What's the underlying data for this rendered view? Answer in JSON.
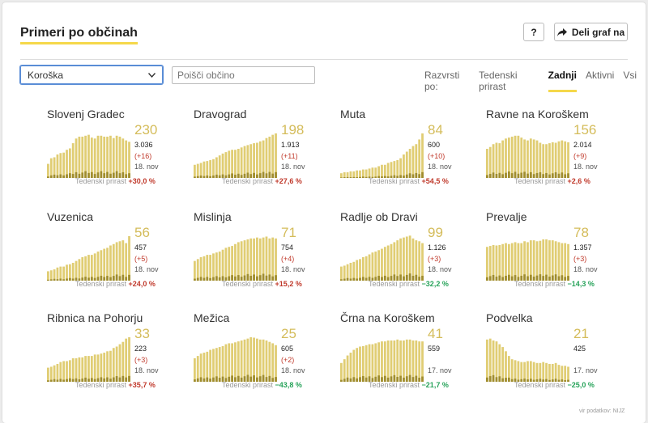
{
  "header": {
    "title": "Primeri po občinah",
    "help_label": "?",
    "share_label": "Deli graf na"
  },
  "filters": {
    "region_selected": "Koroška",
    "search_placeholder": "Poišči občino",
    "sort_label": "Razvrsti po:",
    "sort_options": [
      "Tedenski prirast",
      "Zadnji",
      "Aktivni",
      "Vsi"
    ],
    "sort_active": "Zadnji"
  },
  "weekly_label": "Tedenski prirast",
  "municipalities": [
    {
      "name": "Slovenj Gradec",
      "latest": "230",
      "total": "3.036",
      "delta": "(+16)",
      "date": "18. nov",
      "weekly": "+30,0 %",
      "trend": "up",
      "bars": [
        0.3,
        0.42,
        0.44,
        0.5,
        0.53,
        0.54,
        0.6,
        0.63,
        0.74,
        0.84,
        0.88,
        0.88,
        0.9,
        0.92,
        0.86,
        0.84,
        0.9,
        0.9,
        0.88,
        0.88,
        0.9,
        0.85,
        0.9,
        0.88,
        0.84,
        0.8,
        0.77
      ]
    },
    {
      "name": "Dravograd",
      "latest": "198",
      "total": "1.913",
      "delta": "(+11)",
      "date": "18. nov",
      "weekly": "+27,6 %",
      "trend": "up",
      "bars": [
        0.28,
        0.3,
        0.32,
        0.35,
        0.36,
        0.38,
        0.4,
        0.44,
        0.48,
        0.52,
        0.55,
        0.58,
        0.6,
        0.6,
        0.62,
        0.65,
        0.68,
        0.7,
        0.72,
        0.74,
        0.75,
        0.78,
        0.8,
        0.85,
        0.88,
        0.92,
        0.95
      ]
    },
    {
      "name": "Muta",
      "latest": "84",
      "total": "600",
      "delta": "(+10)",
      "date": "18. nov",
      "weekly": "+54,5 %",
      "trend": "up",
      "bars": [
        0.1,
        0.12,
        0.12,
        0.14,
        0.14,
        0.16,
        0.16,
        0.18,
        0.18,
        0.2,
        0.22,
        0.22,
        0.25,
        0.28,
        0.28,
        0.32,
        0.34,
        0.36,
        0.38,
        0.42,
        0.5,
        0.56,
        0.62,
        0.68,
        0.72,
        0.82,
        0.95
      ]
    },
    {
      "name": "Ravne na Koroškem",
      "latest": "156",
      "total": "2.014",
      "delta": "(+9)",
      "date": "18. nov",
      "weekly": "+2,6 %",
      "trend": "up",
      "bars": [
        0.62,
        0.66,
        0.72,
        0.75,
        0.74,
        0.8,
        0.84,
        0.86,
        0.88,
        0.9,
        0.9,
        0.86,
        0.82,
        0.8,
        0.84,
        0.82,
        0.8,
        0.75,
        0.72,
        0.72,
        0.74,
        0.76,
        0.75,
        0.78,
        0.8,
        0.78,
        0.76
      ]
    },
    {
      "name": "Vuzenica",
      "latest": "56",
      "total": "457",
      "delta": "(+5)",
      "date": "18. nov",
      "weekly": "+24,0 %",
      "trend": "up",
      "bars": [
        0.2,
        0.22,
        0.24,
        0.28,
        0.3,
        0.3,
        0.34,
        0.35,
        0.38,
        0.42,
        0.46,
        0.5,
        0.52,
        0.55,
        0.55,
        0.58,
        0.62,
        0.65,
        0.68,
        0.7,
        0.75,
        0.78,
        0.82,
        0.84,
        0.86,
        0.8,
        0.95
      ]
    },
    {
      "name": "Mislinja",
      "latest": "71",
      "total": "754",
      "delta": "(+4)",
      "date": "18. nov",
      "weekly": "+15,2 %",
      "trend": "up",
      "bars": [
        0.42,
        0.46,
        0.5,
        0.52,
        0.55,
        0.55,
        0.58,
        0.6,
        0.62,
        0.66,
        0.7,
        0.72,
        0.74,
        0.78,
        0.82,
        0.84,
        0.86,
        0.88,
        0.9,
        0.9,
        0.92,
        0.9,
        0.92,
        0.94,
        0.9,
        0.92,
        0.9
      ]
    },
    {
      "name": "Radlje ob Dravi",
      "latest": "99",
      "total": "1.126",
      "delta": "(+3)",
      "date": "18. nov",
      "weekly": "−32,2 %",
      "trend": "down",
      "bars": [
        0.3,
        0.32,
        0.35,
        0.38,
        0.4,
        0.44,
        0.46,
        0.5,
        0.52,
        0.56,
        0.6,
        0.62,
        0.65,
        0.68,
        0.72,
        0.75,
        0.78,
        0.82,
        0.86,
        0.9,
        0.92,
        0.94,
        0.96,
        0.9,
        0.86,
        0.84,
        0.8
      ]
    },
    {
      "name": "Prevalje",
      "latest": "78",
      "total": "1.357",
      "delta": "(+3)",
      "date": "18. nov",
      "weekly": "−14,3 %",
      "trend": "down",
      "bars": [
        0.72,
        0.74,
        0.76,
        0.75,
        0.76,
        0.78,
        0.8,
        0.78,
        0.8,
        0.82,
        0.8,
        0.8,
        0.84,
        0.82,
        0.86,
        0.86,
        0.84,
        0.85,
        0.88,
        0.88,
        0.86,
        0.86,
        0.84,
        0.82,
        0.8,
        0.8,
        0.78
      ]
    },
    {
      "name": "Ribnica na Pohorju",
      "latest": "33",
      "total": "223",
      "delta": "(+3)",
      "date": "18. nov",
      "weekly": "+35,7 %",
      "trend": "up",
      "bars": [
        0.3,
        0.32,
        0.35,
        0.38,
        0.42,
        0.44,
        0.44,
        0.46,
        0.5,
        0.5,
        0.52,
        0.52,
        0.55,
        0.55,
        0.55,
        0.58,
        0.58,
        0.6,
        0.62,
        0.65,
        0.66,
        0.72,
        0.75,
        0.8,
        0.85,
        0.92,
        0.95
      ]
    },
    {
      "name": "Mežica",
      "latest": "25",
      "total": "605",
      "delta": "(+2)",
      "date": "18. nov",
      "weekly": "−43,8 %",
      "trend": "down",
      "bars": [
        0.5,
        0.55,
        0.6,
        0.62,
        0.64,
        0.68,
        0.7,
        0.72,
        0.74,
        0.76,
        0.8,
        0.82,
        0.82,
        0.84,
        0.86,
        0.88,
        0.9,
        0.92,
        0.95,
        0.94,
        0.92,
        0.9,
        0.9,
        0.88,
        0.85,
        0.82,
        0.78
      ]
    },
    {
      "name": "Črna na Koroškem",
      "latest": "41",
      "total": "559",
      "delta": "",
      "date": "17. nov",
      "weekly": "−21,7 %",
      "trend": "down",
      "bars": [
        0.4,
        0.48,
        0.56,
        0.62,
        0.68,
        0.72,
        0.75,
        0.76,
        0.78,
        0.8,
        0.8,
        0.82,
        0.84,
        0.86,
        0.86,
        0.88,
        0.88,
        0.88,
        0.9,
        0.88,
        0.88,
        0.9,
        0.9,
        0.88,
        0.88,
        0.86,
        0.86
      ]
    },
    {
      "name": "Podvelka",
      "latest": "21",
      "total": "425",
      "delta": "",
      "date": "17. nov",
      "weekly": "−25,0 %",
      "trend": "down",
      "bars": [
        0.9,
        0.92,
        0.88,
        0.86,
        0.8,
        0.74,
        0.65,
        0.55,
        0.48,
        0.46,
        0.44,
        0.42,
        0.42,
        0.44,
        0.44,
        0.42,
        0.4,
        0.4,
        0.42,
        0.4,
        0.38,
        0.38,
        0.4,
        0.36,
        0.34,
        0.34,
        0.32
      ]
    }
  ],
  "source_label": "vir podatkov: NIJZ",
  "colors": {
    "bar": "#e0cd73",
    "bar_dark": "#a08d2e",
    "accent": "#f5d84a",
    "up": "#c0392b",
    "down": "#27a35a"
  }
}
